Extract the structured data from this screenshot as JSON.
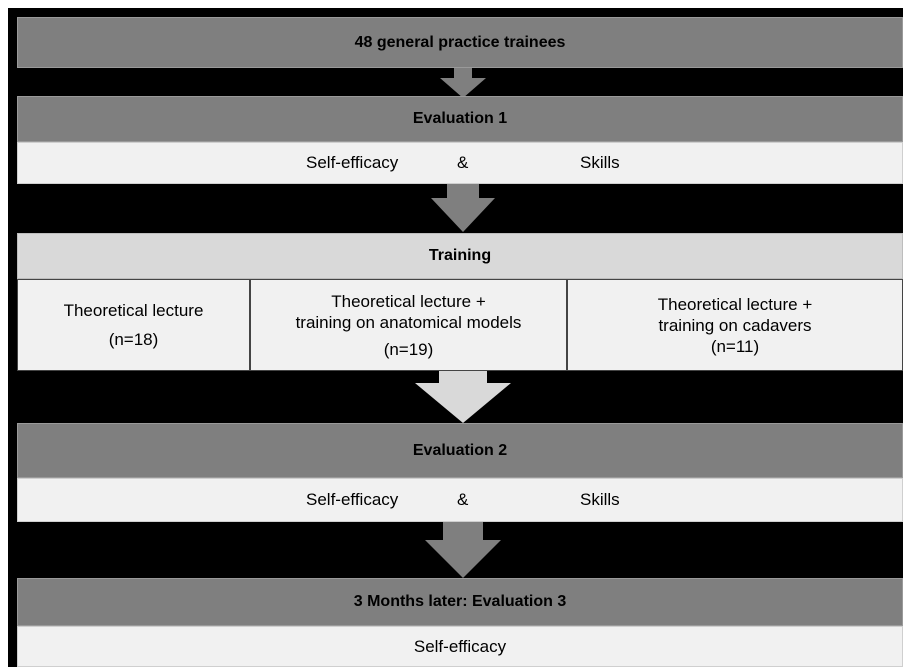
{
  "participants": "48 general practice trainees",
  "evaluation1": {
    "title": "Evaluation 1",
    "left": "Self-efficacy",
    "amp": "&",
    "right": "Skills"
  },
  "training": {
    "title": "Training",
    "groups": [
      {
        "line1": "Theoretical lecture",
        "line2": "",
        "n": "(n=18)"
      },
      {
        "line1": "Theoretical lecture +",
        "line2": "training on anatomical models",
        "n": "(n=19)"
      },
      {
        "line1": "Theoretical lecture +",
        "line2": "training on cadavers",
        "n": "(n=11)"
      }
    ]
  },
  "evaluation2": {
    "title": "Evaluation 2",
    "left": "Self-efficacy",
    "amp": "&",
    "right": "Skills"
  },
  "evaluation3": {
    "title": "3 Months later: Evaluation 3",
    "content": "Self-efficacy"
  },
  "colors": {
    "background": "#000000",
    "dark_box": "#7f7f7f",
    "light_box": "#f1f1f1",
    "training_header": "#d9d9d9",
    "arrow_dark": "#7f7f7f",
    "arrow_light": "#d9d9d9"
  }
}
